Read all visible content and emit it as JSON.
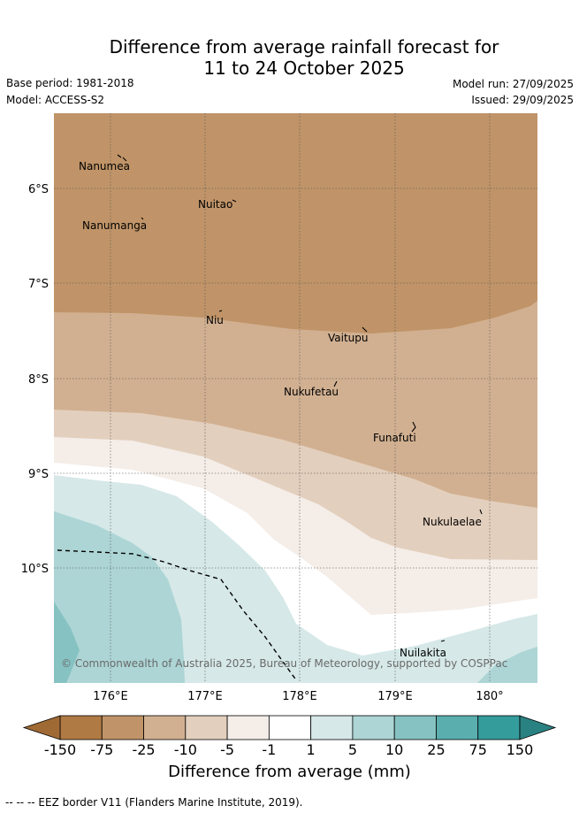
{
  "header": {
    "title_line1": "Difference from average rainfall forecast for",
    "title_line2": "11 to 24 October 2025",
    "base_period": "Base period: 1981-2018",
    "model": "Model: ACCESS-S2",
    "model_run": "Model run: 27/09/2025",
    "issued": "Issued: 29/09/2025"
  },
  "map": {
    "lat_labels": [
      "6°S",
      "7°S",
      "8°S",
      "9°S",
      "10°S"
    ],
    "lon_labels": [
      "176°E",
      "177°E",
      "178°E",
      "179°E",
      "180°"
    ],
    "places": [
      {
        "name": "Nanumea"
      },
      {
        "name": "Nuitao"
      },
      {
        "name": "Nanumanga"
      },
      {
        "name": "Niu"
      },
      {
        "name": "Vaitupu"
      },
      {
        "name": "Nukufetau"
      },
      {
        "name": "Funafuti"
      },
      {
        "name": "Nukulaelae"
      },
      {
        "name": "Nuilakita"
      }
    ],
    "copyright": "© Commonwealth of Australia 2025, Bureau of Meteorology, supported by COSPPac"
  },
  "colorbar": {
    "title": "Difference from average (mm)",
    "labels": [
      "-150",
      "-75",
      "-25",
      "-10",
      "-5",
      "-1",
      "1",
      "5",
      "10",
      "25",
      "75",
      "150"
    ],
    "colors": [
      "#b07a44",
      "#c09468",
      "#d1b091",
      "#e3cfbd",
      "#f4ede8",
      "#ffffff",
      "#d6e8e8",
      "#add5d5",
      "#86c2c2",
      "#5aaeae",
      "#359c9c"
    ],
    "under_color": "#a06a35",
    "over_color": "#2a8181"
  },
  "legend": {
    "eez_label": "--  --  -- EEZ border V11 (Flanders Marine Institute, 2019)."
  }
}
